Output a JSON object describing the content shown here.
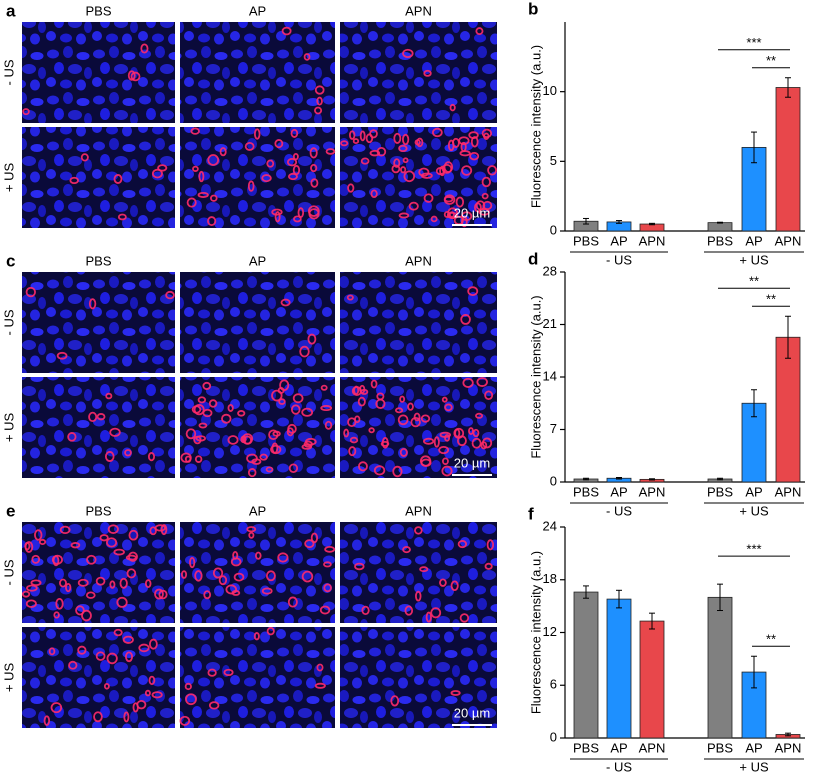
{
  "image_panels": [
    {
      "panel_label": "a",
      "columns": [
        "PBS",
        "AP",
        "APN"
      ],
      "rows": [
        "- US",
        "+ US"
      ],
      "scale_bar": "20 µm"
    },
    {
      "panel_label": "c",
      "columns": [
        "PBS",
        "AP",
        "APN"
      ],
      "rows": [
        "- US",
        "+ US"
      ],
      "scale_bar": "20 µm"
    },
    {
      "panel_label": "e",
      "columns": [
        "PBS",
        "AP",
        "APN"
      ],
      "rows": [
        "- US",
        "+ US"
      ],
      "scale_bar": "20 µm"
    }
  ],
  "chart_data": [
    {
      "type": "bar",
      "panel_label": "b",
      "y_label": "Fluorescence intensity (a.u.)",
      "categories": [
        "PBS",
        "AP",
        "APN",
        "PBS",
        "AP",
        "APN"
      ],
      "group_labels": [
        "- US",
        "+ US"
      ],
      "values": [
        0.7,
        0.65,
        0.5,
        0.6,
        6.0,
        10.3
      ],
      "errors": [
        0.2,
        0.1,
        0.05,
        0.03,
        1.1,
        0.7
      ],
      "colors": [
        "#808080",
        "#1e90ff",
        "#e8474b",
        "#808080",
        "#1e90ff",
        "#e8474b"
      ],
      "ylim": [
        0,
        15
      ],
      "yticks": [
        0,
        5,
        10
      ],
      "annotations": [
        {
          "label": "***",
          "from": 3,
          "to": 5
        },
        {
          "label": "**",
          "from": 4,
          "to": 5
        }
      ]
    },
    {
      "type": "bar",
      "panel_label": "d",
      "y_label": "Fluorescence intensity (a.u.)",
      "categories": [
        "PBS",
        "AP",
        "APN",
        "PBS",
        "AP",
        "APN"
      ],
      "group_labels": [
        "- US",
        "+ US"
      ],
      "values": [
        0.4,
        0.5,
        0.35,
        0.4,
        10.5,
        19.3
      ],
      "errors": [
        0.1,
        0.1,
        0.08,
        0.1,
        1.8,
        2.8
      ],
      "colors": [
        "#808080",
        "#1e90ff",
        "#e8474b",
        "#808080",
        "#1e90ff",
        "#e8474b"
      ],
      "ylim": [
        0,
        28
      ],
      "yticks": [
        0,
        7,
        14,
        21,
        28
      ],
      "annotations": [
        {
          "label": "**",
          "from": 3,
          "to": 5
        },
        {
          "label": "**",
          "from": 4,
          "to": 5
        }
      ]
    },
    {
      "type": "bar",
      "panel_label": "f",
      "y_label": "Fluorescence intensity (a.u.)",
      "categories": [
        "PBS",
        "AP",
        "APN",
        "PBS",
        "AP",
        "APN"
      ],
      "group_labels": [
        "- US",
        "+ US"
      ],
      "values": [
        16.6,
        15.8,
        13.3,
        16.0,
        7.5,
        0.4
      ],
      "errors": [
        0.7,
        1.0,
        0.9,
        1.5,
        1.8,
        0.15
      ],
      "colors": [
        "#808080",
        "#1e90ff",
        "#e8474b",
        "#808080",
        "#1e90ff",
        "#e8474b"
      ],
      "ylim": [
        0,
        24
      ],
      "yticks": [
        0,
        6,
        12,
        18,
        24
      ],
      "annotations": [
        {
          "label": "***",
          "from": 3,
          "to": 5
        },
        {
          "label": "**",
          "from": 4,
          "to": 5
        }
      ]
    }
  ]
}
